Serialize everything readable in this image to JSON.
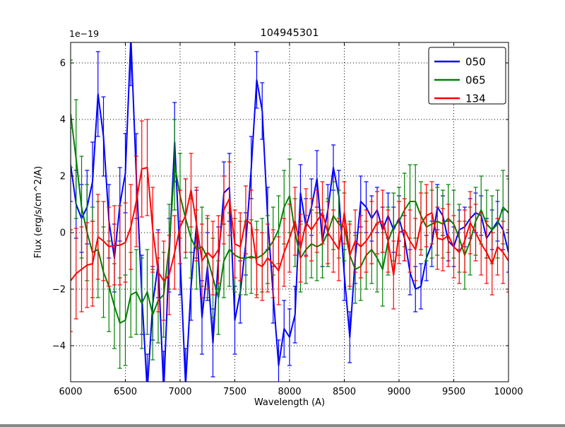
{
  "chart_data": {
    "type": "line",
    "title": "104945301",
    "xlabel": "Wavelength (A)",
    "ylabel": "Flux (erg/s/cm^2/A)",
    "offset_text": "1e−19",
    "grid": true,
    "grid_style": "dotted",
    "legend_position": "upper right",
    "xlim": [
      6000,
      10000
    ],
    "ylim": [
      -5.275,
      6.725
    ],
    "xtick_values": [
      6000,
      6500,
      7000,
      7500,
      8000,
      8500,
      9000,
      9500,
      10000
    ],
    "xtick_labels": [
      "6000",
      "6500",
      "7000",
      "7500",
      "8000",
      "8500",
      "9000",
      "9500",
      "10000"
    ],
    "ytick_values": [
      -4,
      -2,
      0,
      2,
      4,
      6
    ],
    "ytick_labels": [
      "−4",
      "−2",
      "0",
      "2",
      "4",
      "6"
    ],
    "x_start": 6000,
    "x_step": 50,
    "flux_scale": "1e-19 erg/s/cm^2/A",
    "series": [
      {
        "name": "050",
        "color": "#0000ff",
        "values": [
          2.4,
          1.0,
          0.5,
          0.9,
          1.8,
          4.9,
          3.4,
          0.4,
          -0.9,
          1.0,
          2.1,
          6.9,
          2.0,
          -2.2,
          -5.6,
          -2.5,
          -1.1,
          -5.6,
          -0.8,
          3.2,
          -0.9,
          -5.4,
          -1.9,
          0.3,
          -3.0,
          -1.2,
          -3.9,
          -0.9,
          1.4,
          1.6,
          -3.1,
          -2.1,
          -0.4,
          2.3,
          5.4,
          4.3,
          0.5,
          -2.2,
          -4.7,
          -3.4,
          -3.7,
          -2.9,
          1.4,
          0.2,
          0.9,
          1.9,
          -0.3,
          0.8,
          2.3,
          1.3,
          -1.5,
          -3.7,
          -0.9,
          1.1,
          0.9,
          0.5,
          0.8,
          0.1,
          0.6,
          0.1,
          0.5,
          -0.2,
          -1.4,
          -2.0,
          -1.9,
          -0.9,
          -0.4,
          0.9,
          0.6,
          -0.3,
          -0.5,
          0.1,
          0.2,
          0.5,
          0.7,
          0.6,
          -0.2,
          0.1,
          0.4,
          0.1,
          -0.7
        ],
        "err": [
          1.3,
          1.2,
          1.2,
          1.3,
          1.4,
          1.5,
          1.4,
          1.3,
          1.2,
          1.3,
          1.4,
          1.7,
          1.5,
          1.4,
          1.3,
          1.3,
          1.2,
          1.4,
          1.3,
          1.4,
          1.3,
          1.3,
          1.2,
          1.2,
          1.3,
          1.2,
          1.2,
          1.1,
          1.1,
          1.2,
          1.2,
          1.1,
          1.1,
          1.1,
          1.0,
          1.0,
          1.1,
          1.0,
          0.9,
          1.0,
          1.0,
          1.0,
          1.0,
          1.0,
          1.0,
          1.0,
          0.9,
          0.9,
          0.8,
          0.9,
          0.9,
          0.9,
          0.9,
          0.9,
          0.9,
          0.8,
          0.8,
          0.8,
          0.8,
          0.8,
          0.8,
          0.8,
          0.8,
          0.8,
          0.8,
          0.8,
          0.8,
          0.8,
          0.7,
          0.7,
          0.7,
          0.7,
          0.7,
          0.7,
          0.7,
          0.7,
          0.7,
          0.7,
          0.7,
          0.7,
          0.7
        ]
      },
      {
        "name": "065",
        "color": "#008000",
        "values": [
          4.2,
          2.6,
          0.9,
          0.0,
          -0.7,
          -0.6,
          -1.4,
          -1.9,
          -2.6,
          -3.2,
          -3.1,
          -2.2,
          -2.1,
          -2.5,
          -2.1,
          -2.9,
          -2.4,
          -2.2,
          -0.5,
          2.4,
          1.3,
          0.5,
          -0.2,
          -0.6,
          -0.5,
          -0.9,
          -1.6,
          -2.3,
          -1.0,
          -0.6,
          -0.8,
          -0.9,
          -0.9,
          -0.85,
          -0.9,
          -0.8,
          -0.6,
          -0.3,
          0.1,
          0.9,
          1.3,
          0.0,
          -0.9,
          -0.6,
          -0.4,
          -0.5,
          -0.4,
          0.0,
          0.6,
          0.3,
          0.2,
          -0.8,
          -1.3,
          -1.2,
          -0.8,
          -0.6,
          -0.9,
          -1.3,
          -0.3,
          0.2,
          0.4,
          0.8,
          1.1,
          1.1,
          0.6,
          0.2,
          0.3,
          0.4,
          0.3,
          0.5,
          0.3,
          -0.2,
          -0.8,
          -0.3,
          0.4,
          0.8,
          0.3,
          0.1,
          0.3,
          0.9,
          0.7
        ],
        "err": [
          1.9,
          2.1,
          1.8,
          1.7,
          1.6,
          1.7,
          1.6,
          1.6,
          1.5,
          1.6,
          1.6,
          1.5,
          1.5,
          1.6,
          1.5,
          1.6,
          1.5,
          1.5,
          1.5,
          1.6,
          1.5,
          1.4,
          1.4,
          1.4,
          1.4,
          1.4,
          1.4,
          1.3,
          1.3,
          1.3,
          1.3,
          1.3,
          1.3,
          1.3,
          1.3,
          1.3,
          1.2,
          1.2,
          1.2,
          1.3,
          1.3,
          1.2,
          1.2,
          1.2,
          1.2,
          1.2,
          1.2,
          1.2,
          1.2,
          1.2,
          1.2,
          1.2,
          1.2,
          1.2,
          1.2,
          1.2,
          1.2,
          1.3,
          1.2,
          1.2,
          1.2,
          1.3,
          1.3,
          1.3,
          1.2,
          1.2,
          1.2,
          1.2,
          1.2,
          1.2,
          1.2,
          1.2,
          1.2,
          1.2,
          1.2,
          1.2,
          1.2,
          1.2,
          1.2,
          1.3,
          1.2
        ]
      },
      {
        "name": "134",
        "color": "#ff0000",
        "values": [
          -1.7,
          -1.45,
          -1.3,
          -1.15,
          -1.1,
          -0.15,
          -0.3,
          -0.5,
          -0.45,
          -0.45,
          -0.35,
          0.2,
          1.1,
          2.25,
          2.3,
          0.1,
          -1.4,
          -1.7,
          -1.5,
          -0.7,
          0.2,
          0.6,
          1.5,
          0.3,
          -1.0,
          -0.7,
          -0.9,
          -0.6,
          0.8,
          1.2,
          -0.4,
          -0.5,
          0.45,
          0.3,
          -1.1,
          -1.2,
          -0.9,
          -1.1,
          -1.35,
          -0.7,
          -0.2,
          0.4,
          -0.55,
          0.35,
          0.1,
          0.4,
          0.7,
          0.0,
          -0.3,
          -0.6,
          0.7,
          -0.8,
          -0.3,
          -0.5,
          -0.3,
          0.0,
          0.35,
          0.4,
          -0.3,
          -1.5,
          0.0,
          0.1,
          -0.3,
          -0.6,
          0.3,
          0.6,
          0.7,
          -0.2,
          -0.25,
          -0.1,
          -0.5,
          -0.7,
          -0.3,
          0.35,
          0.0,
          -0.4,
          -0.7,
          -1.1,
          -0.5,
          -0.7,
          -1.0
        ],
        "err": [
          1.8,
          1.6,
          1.5,
          1.5,
          1.5,
          1.5,
          1.4,
          1.4,
          1.4,
          1.4,
          1.4,
          1.5,
          1.6,
          1.7,
          1.7,
          1.5,
          1.4,
          1.4,
          1.4,
          1.3,
          1.3,
          1.3,
          1.3,
          1.3,
          1.3,
          1.3,
          1.3,
          1.2,
          1.2,
          1.3,
          1.2,
          1.2,
          1.2,
          1.2,
          1.2,
          1.2,
          1.2,
          1.2,
          1.2,
          1.2,
          1.2,
          1.2,
          1.2,
          1.2,
          1.1,
          1.1,
          1.1,
          1.1,
          1.1,
          1.1,
          1.1,
          1.1,
          1.1,
          1.1,
          1.1,
          1.1,
          1.1,
          1.1,
          1.1,
          1.2,
          1.1,
          1.1,
          1.1,
          1.1,
          1.1,
          1.1,
          1.1,
          1.1,
          1.1,
          1.1,
          1.1,
          1.1,
          1.1,
          1.1,
          1.0,
          1.1,
          1.1,
          1.1,
          1.0,
          1.1,
          1.1
        ]
      }
    ]
  }
}
